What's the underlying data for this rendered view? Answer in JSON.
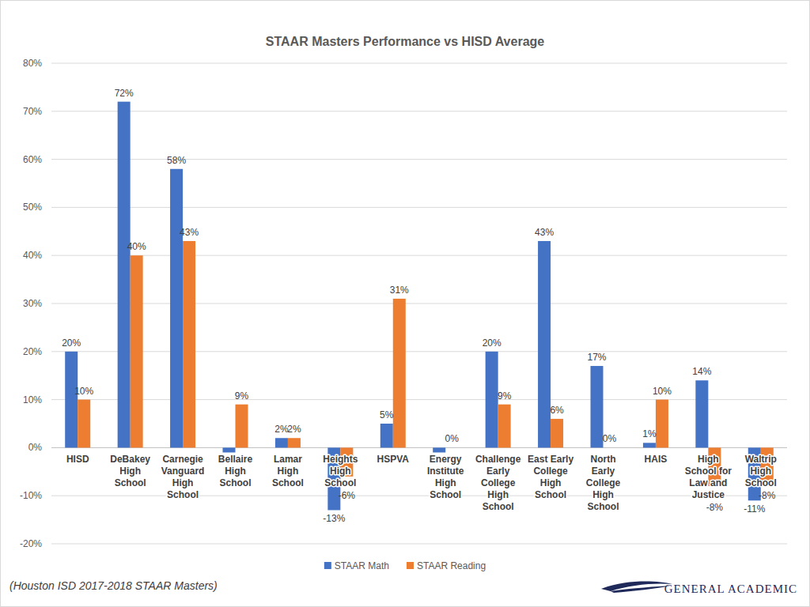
{
  "chart_data": {
    "type": "bar",
    "title": "STAAR Masters Performance vs HISD Average",
    "source": "(Houston ISD 2017-2018 STAAR Masters)",
    "brand": "GENERAL ACADEMIC",
    "categories": [
      "HISD",
      "DeBakey High School",
      "Carnegie Vanguard High School",
      "Bellaire High School",
      "Lamar High School",
      "Heights High School",
      "HSPVA",
      "Energy Institute High School",
      "Challenge Early College High School",
      "East Early College High School",
      "North Early College High School",
      "HAIS",
      "High School for Law and Justice",
      "Waltrip High School"
    ],
    "series": [
      {
        "name": "STAAR Math",
        "color": "#4472c4",
        "values": [
          20,
          72,
          58,
          -1,
          2,
          -13,
          5,
          -1,
          20,
          43,
          17,
          1,
          14,
          -11
        ],
        "value_labels": [
          "20%",
          "72%",
          "58%",
          null,
          "2%",
          "-13%",
          "5%",
          null,
          "20%",
          "43%",
          "17%",
          "1%",
          "14%",
          "-11%"
        ]
      },
      {
        "name": "STAAR Reading",
        "color": "#ed7d31",
        "values": [
          10,
          40,
          43,
          9,
          2,
          -6,
          31,
          0,
          9,
          6,
          0,
          10,
          -8,
          -8
        ],
        "value_labels": [
          "10%",
          "40%",
          "43%",
          "9%",
          "2%",
          "-6%",
          "31%",
          "0%",
          "9%",
          "6%",
          "0%",
          "10%",
          "-8%",
          "-8%"
        ]
      }
    ],
    "ylim": [
      -20,
      80
    ],
    "yticks": [
      {
        "value": -20,
        "label": "-20%"
      },
      {
        "value": -10,
        "label": "-10%"
      },
      {
        "value": 0,
        "label": "0%"
      },
      {
        "value": 10,
        "label": "10%"
      },
      {
        "value": 20,
        "label": "20%"
      },
      {
        "value": 30,
        "label": "30%"
      },
      {
        "value": 40,
        "label": "40%"
      },
      {
        "value": 50,
        "label": "50%"
      },
      {
        "value": 60,
        "label": "60%"
      },
      {
        "value": 70,
        "label": "70%"
      },
      {
        "value": 80,
        "label": "80%"
      }
    ],
    "grid": true,
    "legend": "bottom",
    "data_labels": true
  }
}
